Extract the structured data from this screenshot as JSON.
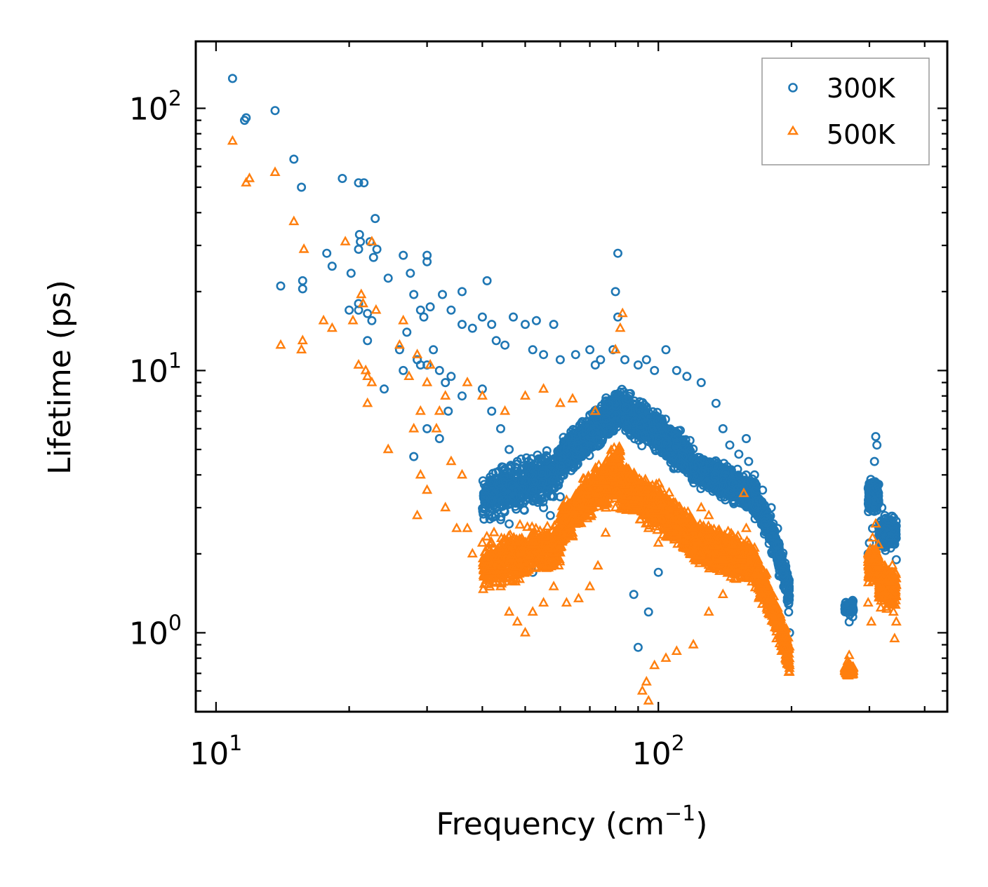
{
  "chart_data": {
    "type": "scatter",
    "title": "",
    "xlabel": "Frequency (cm",
    "xlabel_sup": "−1",
    "xlabel_close": ")",
    "ylabel": "Lifetime (ps)",
    "xscale": "log",
    "yscale": "log",
    "xlim": [
      9,
      450
    ],
    "ylim": [
      0.5,
      180
    ],
    "xticks": [
      {
        "value": 10,
        "base": "10",
        "exp": "1"
      },
      {
        "value": 100,
        "base": "10",
        "exp": "2"
      }
    ],
    "yticks": [
      {
        "value": 1,
        "base": "10",
        "exp": "0"
      },
      {
        "value": 10,
        "base": "10",
        "exp": "1"
      },
      {
        "value": 100,
        "base": "10",
        "exp": "2"
      }
    ],
    "legend_position": "top-right",
    "series": [
      {
        "name": "300K",
        "marker": "circle",
        "color": "#1f77b4",
        "points": [
          [
            10.9,
            130
          ],
          [
            11.6,
            90
          ],
          [
            11.7,
            92
          ],
          [
            13.6,
            98
          ],
          [
            15,
            64
          ],
          [
            15.6,
            50
          ],
          [
            14,
            21
          ],
          [
            15.7,
            22
          ],
          [
            15.7,
            20.5
          ],
          [
            17.8,
            28
          ],
          [
            18.3,
            25
          ],
          [
            19.3,
            54
          ],
          [
            20.2,
            23.5
          ],
          [
            21,
            52
          ],
          [
            21.6,
            52
          ],
          [
            21.1,
            33
          ],
          [
            21.2,
            31
          ],
          [
            22.3,
            31
          ],
          [
            22.9,
            38
          ],
          [
            23.1,
            29
          ],
          [
            21,
            29
          ],
          [
            22.7,
            27
          ],
          [
            24.5,
            22.5
          ],
          [
            26.5,
            27.5
          ],
          [
            27.5,
            23.5
          ],
          [
            30,
            27.5
          ],
          [
            30,
            26
          ],
          [
            28,
            19.5
          ],
          [
            29,
            17
          ],
          [
            29.5,
            16
          ],
          [
            32.5,
            19.5
          ],
          [
            30.5,
            17.5
          ],
          [
            21,
            18
          ],
          [
            21,
            17
          ],
          [
            20,
            17
          ],
          [
            22,
            16.5
          ],
          [
            22.5,
            15.5
          ],
          [
            22,
            13
          ],
          [
            24,
            8.5
          ],
          [
            26,
            12
          ],
          [
            26.5,
            10
          ],
          [
            27,
            14
          ],
          [
            28.5,
            11
          ],
          [
            29,
            10.5
          ],
          [
            31,
            12
          ],
          [
            30,
            10.5
          ],
          [
            32,
            10
          ],
          [
            33,
            9
          ],
          [
            34,
            9.5
          ],
          [
            36,
            8
          ],
          [
            33.5,
            7
          ],
          [
            30,
            6
          ],
          [
            32,
            5.5
          ],
          [
            28,
            4.7
          ],
          [
            36,
            20
          ],
          [
            34,
            17
          ],
          [
            36,
            15
          ],
          [
            38,
            14.5
          ],
          [
            41,
            22
          ],
          [
            40,
            16
          ],
          [
            42,
            15
          ],
          [
            43,
            13
          ],
          [
            45,
            12.5
          ],
          [
            47,
            16
          ],
          [
            50,
            15
          ],
          [
            53,
            15.5
          ],
          [
            58,
            15
          ],
          [
            52,
            12
          ],
          [
            55,
            11.5
          ],
          [
            60,
            11
          ],
          [
            65,
            11.5
          ],
          [
            70,
            12
          ],
          [
            74,
            11
          ],
          [
            72,
            10.5
          ],
          [
            80,
            20
          ],
          [
            81,
            28
          ],
          [
            81,
            16
          ],
          [
            79,
            12
          ],
          [
            84,
            11
          ],
          [
            90,
            10.5
          ],
          [
            94,
            11
          ],
          [
            98,
            10
          ],
          [
            104,
            12
          ],
          [
            110,
            10
          ],
          [
            116,
            9.5
          ],
          [
            125,
            9
          ],
          [
            135,
            7.5
          ],
          [
            140,
            6
          ],
          [
            145,
            5.2
          ],
          [
            152,
            4.8
          ],
          [
            158,
            5.5
          ],
          [
            160,
            4.5
          ],
          [
            165,
            4
          ],
          [
            172,
            3.5
          ],
          [
            180,
            3
          ],
          [
            186,
            2.5
          ],
          [
            192,
            1.5
          ],
          [
            197,
            1.2
          ],
          [
            198,
            1
          ],
          [
            40,
            8.5
          ],
          [
            42,
            7
          ],
          [
            44,
            6
          ],
          [
            46,
            5
          ],
          [
            48,
            4.5
          ],
          [
            50,
            4
          ],
          [
            52,
            3.5
          ],
          [
            55,
            3
          ],
          [
            57,
            2.8
          ],
          [
            60,
            3.3
          ],
          [
            62,
            3
          ],
          [
            42,
            2.8
          ],
          [
            44,
            2.7
          ],
          [
            46,
            2.6
          ],
          [
            48,
            2.2
          ],
          [
            50,
            1.9
          ],
          [
            52,
            1.7
          ],
          [
            265,
            1.3
          ],
          [
            268,
            1.2
          ],
          [
            270,
            1.1
          ],
          [
            275,
            1.15
          ],
          [
            272,
            1.28
          ],
          [
            310,
            5.6
          ],
          [
            312,
            5.2
          ],
          [
            308,
            4.5
          ],
          [
            305,
            2.5
          ],
          [
            300,
            2.2
          ],
          [
            298,
            2
          ],
          [
            320,
            3
          ],
          [
            325,
            2.8
          ],
          [
            330,
            2.7
          ],
          [
            340,
            2.2
          ],
          [
            345,
            1.9
          ],
          [
            335,
            1.6
          ],
          [
            327,
            1.5
          ],
          [
            90,
            0.88
          ],
          [
            88,
            1.4
          ],
          [
            95,
            1.2
          ],
          [
            100,
            1.7
          ]
        ]
      },
      {
        "name": "500K",
        "marker": "triangle",
        "color": "#ff7f0e",
        "points": [
          [
            10.9,
            75
          ],
          [
            11.7,
            52
          ],
          [
            11.9,
            54
          ],
          [
            13.6,
            57
          ],
          [
            15,
            37
          ],
          [
            15.8,
            29
          ],
          [
            14,
            12.5
          ],
          [
            15.7,
            13
          ],
          [
            15.6,
            12
          ],
          [
            17.5,
            15.5
          ],
          [
            18.3,
            14.5
          ],
          [
            19.6,
            31
          ],
          [
            20.4,
            15.5
          ],
          [
            21.3,
            19.5
          ],
          [
            21.5,
            18
          ],
          [
            22.5,
            31
          ],
          [
            23,
            17
          ],
          [
            21.8,
            10
          ],
          [
            21,
            10.5
          ],
          [
            22,
            9.5
          ],
          [
            22.5,
            9
          ],
          [
            22,
            7.5
          ],
          [
            24.5,
            5
          ],
          [
            26,
            12.5
          ],
          [
            26.5,
            15.5
          ],
          [
            27.3,
            9.5
          ],
          [
            28,
            6
          ],
          [
            28.5,
            11.5
          ],
          [
            29,
            7
          ],
          [
            30,
            9
          ],
          [
            30.5,
            10.5
          ],
          [
            31.5,
            6
          ],
          [
            32,
            7
          ],
          [
            33,
            8
          ],
          [
            34,
            4.5
          ],
          [
            36,
            4
          ],
          [
            29,
            4
          ],
          [
            30,
            3.5
          ],
          [
            33,
            3
          ],
          [
            35,
            2.5
          ],
          [
            28.5,
            2.8
          ],
          [
            37,
            2.5
          ],
          [
            38,
            2
          ],
          [
            40,
            2.2
          ],
          [
            42,
            1.8
          ],
          [
            44,
            1.5
          ],
          [
            46,
            1.2
          ],
          [
            48,
            1.1
          ],
          [
            50,
            1
          ],
          [
            52,
            1.2
          ],
          [
            55,
            1.3
          ],
          [
            58,
            1.5
          ],
          [
            62,
            1.3
          ],
          [
            66,
            1.35
          ],
          [
            70,
            1.5
          ],
          [
            73,
            1.8
          ],
          [
            76,
            2.4
          ],
          [
            80,
            3
          ],
          [
            83,
            16.5
          ],
          [
            82,
            14.5
          ],
          [
            80,
            12
          ],
          [
            72,
            7
          ],
          [
            64,
            7.8
          ],
          [
            60,
            7.5
          ],
          [
            55,
            8.5
          ],
          [
            50,
            8
          ],
          [
            45,
            7
          ],
          [
            40,
            8
          ],
          [
            37,
            9
          ],
          [
            92,
            0.6
          ],
          [
            95,
            0.55
          ],
          [
            94,
            0.65
          ],
          [
            98,
            0.75
          ],
          [
            104,
            0.8
          ],
          [
            110,
            0.85
          ],
          [
            120,
            0.9
          ],
          [
            130,
            1.2
          ],
          [
            140,
            1.4
          ],
          [
            150,
            1.6
          ],
          [
            156,
            3.4
          ],
          [
            158,
            2.5
          ],
          [
            162,
            2
          ],
          [
            170,
            1.6
          ],
          [
            176,
            1.3
          ],
          [
            180,
            1.2
          ],
          [
            185,
            0.95
          ],
          [
            190,
            0.85
          ],
          [
            195,
            0.78
          ],
          [
            198,
            0.75
          ],
          [
            265,
            0.72
          ],
          [
            268,
            0.78
          ],
          [
            270,
            0.82
          ],
          [
            272,
            0.75
          ],
          [
            310,
            2.6
          ],
          [
            305,
            2.3
          ],
          [
            300,
            1.7
          ],
          [
            298,
            1.3
          ],
          [
            303,
            1.1
          ],
          [
            320,
            1.5
          ],
          [
            325,
            1.8
          ],
          [
            330,
            1.6
          ],
          [
            335,
            1.3
          ],
          [
            340,
            1.2
          ],
          [
            345,
            1.1
          ],
          [
            342,
            0.95
          ],
          [
            120,
            2.5
          ],
          [
            125,
            3
          ],
          [
            130,
            2.8
          ],
          [
            100,
            2.2
          ],
          [
            95,
            2.5
          ],
          [
            88,
            3.6
          ],
          [
            85,
            4.2
          ],
          [
            78,
            4.5
          ],
          [
            75,
            3.8
          ],
          [
            68,
            3.5
          ],
          [
            62,
            3.2
          ]
        ]
      }
    ]
  }
}
